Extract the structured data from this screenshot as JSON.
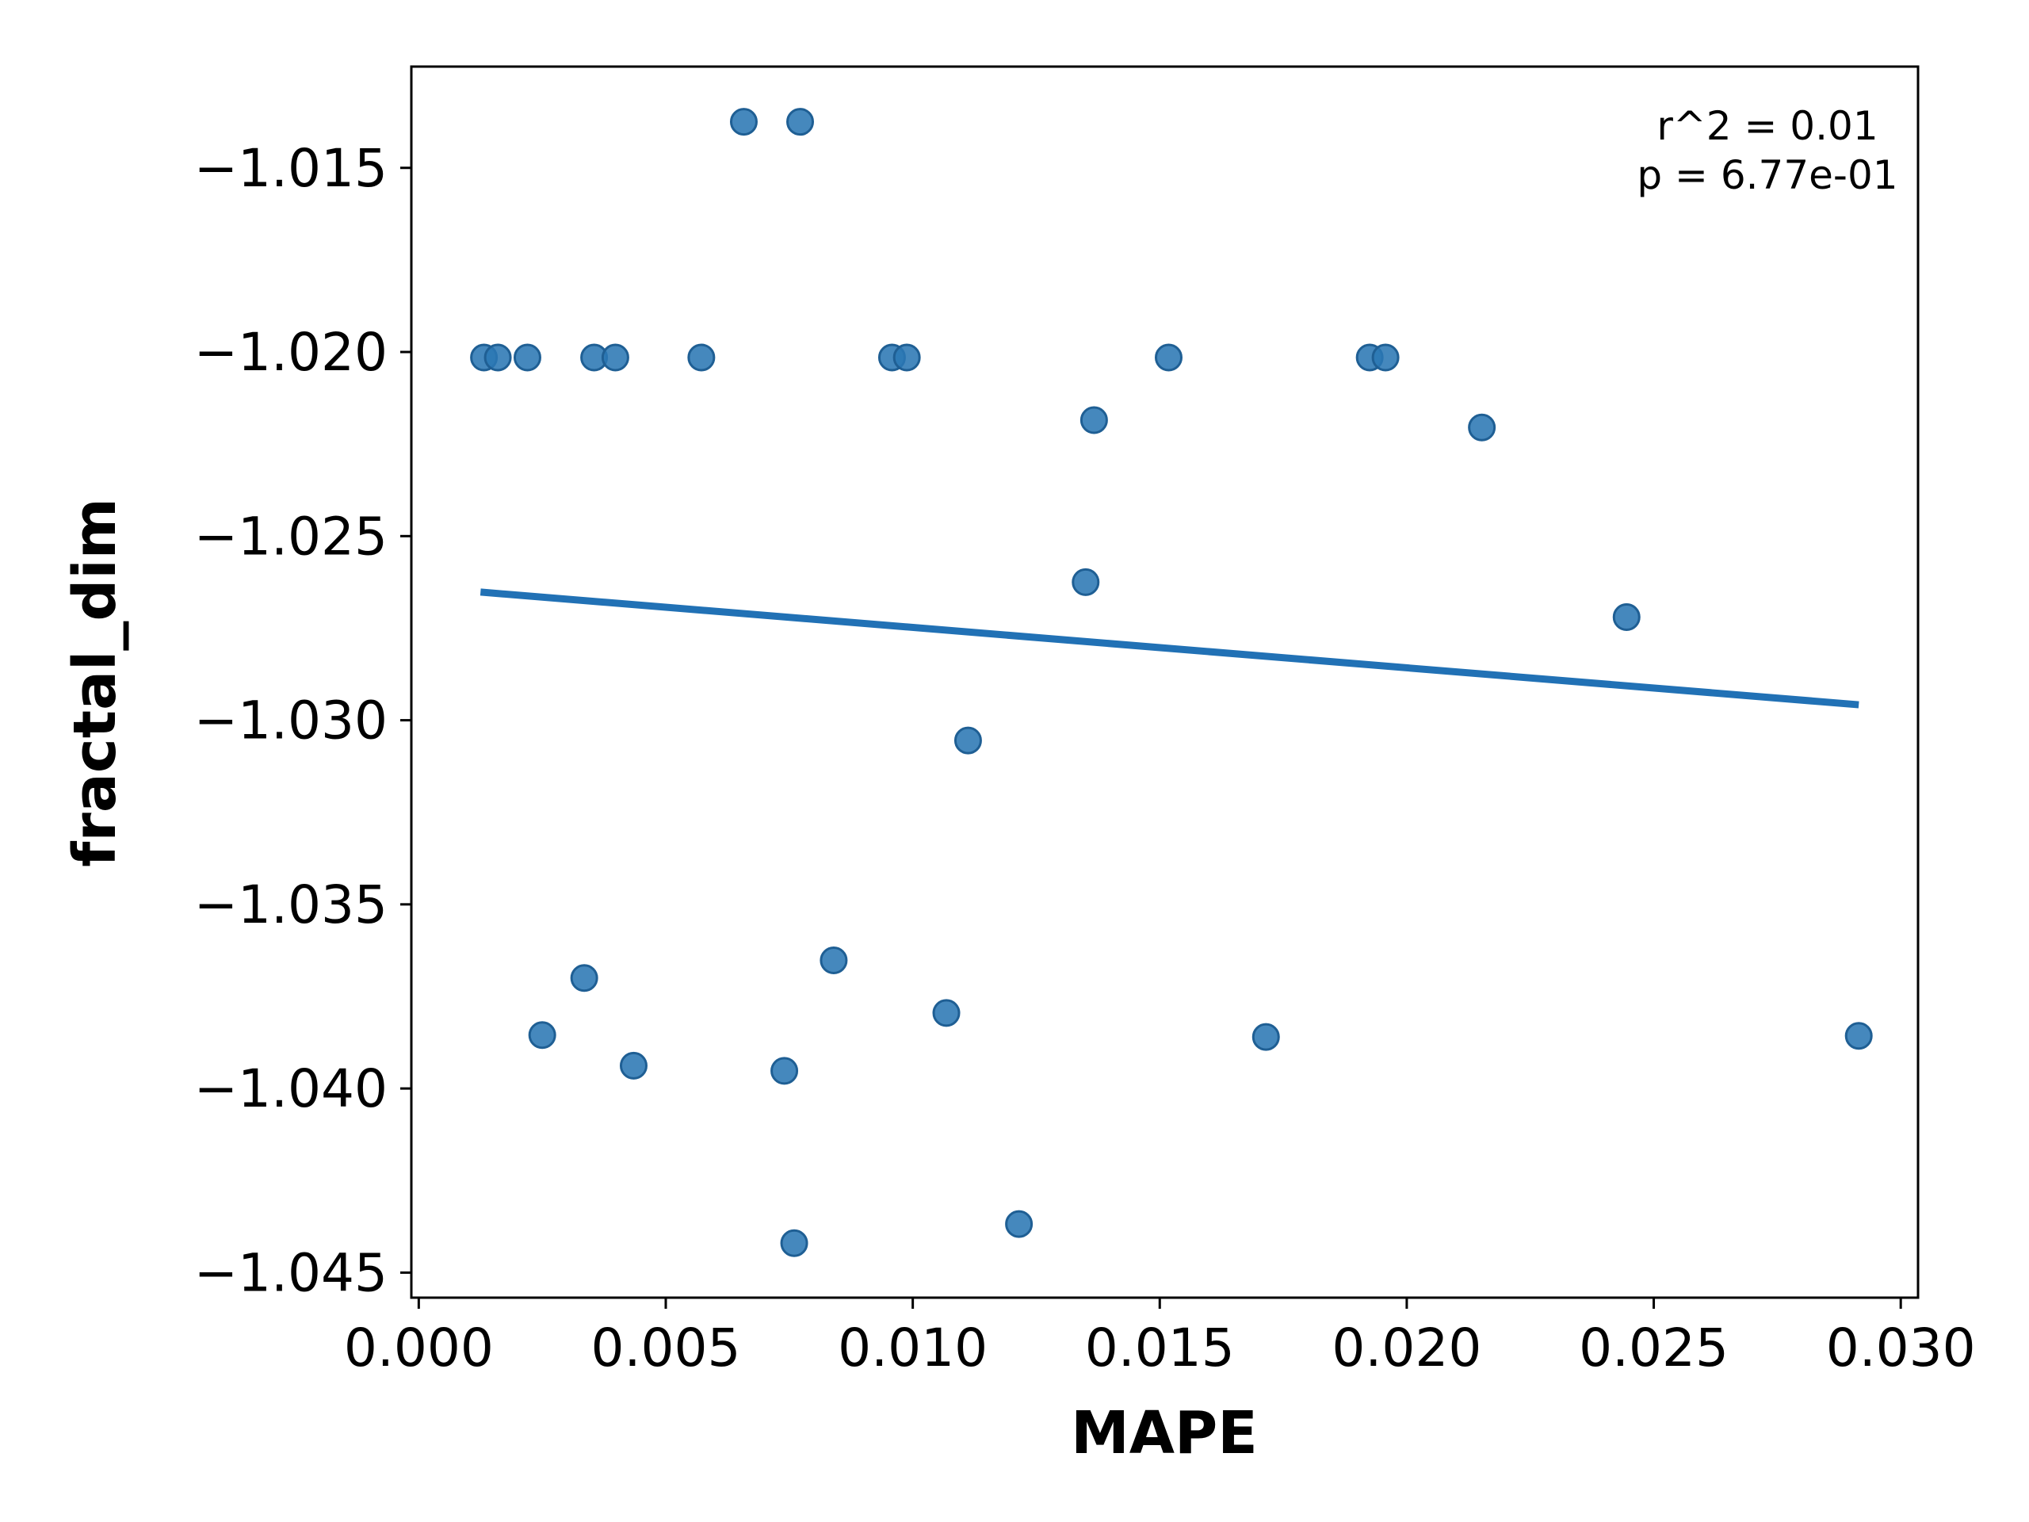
{
  "chart_data": {
    "type": "scatter",
    "xlabel": "MAPE",
    "ylabel": "fractal_dim",
    "xlim": [
      -0.00015,
      0.03035
    ],
    "ylim": [
      -1.04568,
      -1.01225
    ],
    "x_ticks": [
      0.0,
      0.005,
      0.01,
      0.015,
      0.02,
      0.025,
      0.03
    ],
    "x_tick_labels": [
      "0.000",
      "0.005",
      "0.010",
      "0.015",
      "0.020",
      "0.025",
      "0.030"
    ],
    "y_ticks": [
      -1.015,
      -1.02,
      -1.025,
      -1.03,
      -1.035,
      -1.04,
      -1.045
    ],
    "y_tick_labels": [
      "−1.015",
      "−1.020",
      "−1.025",
      "−1.030",
      "−1.035",
      "−1.040",
      "−1.045"
    ],
    "grid": false,
    "annotation": {
      "r2_text": "r^2 = 0.01",
      "p_text": "p = 6.77e-01"
    },
    "points": [
      {
        "x": 0.00132,
        "y": -1.02015
      },
      {
        "x": 0.0016,
        "y": -1.02015
      },
      {
        "x": 0.0022,
        "y": -1.02015
      },
      {
        "x": 0.0025,
        "y": -1.03855
      },
      {
        "x": 0.00335,
        "y": -1.037
      },
      {
        "x": 0.00355,
        "y": -1.02015
      },
      {
        "x": 0.00398,
        "y": -1.02015
      },
      {
        "x": 0.00435,
        "y": -1.03938
      },
      {
        "x": 0.00572,
        "y": -1.02015
      },
      {
        "x": 0.00658,
        "y": -1.01375
      },
      {
        "x": 0.0074,
        "y": -1.03952
      },
      {
        "x": 0.0076,
        "y": -1.0442
      },
      {
        "x": 0.00772,
        "y": -1.01375
      },
      {
        "x": 0.0084,
        "y": -1.03652
      },
      {
        "x": 0.00958,
        "y": -1.02015
      },
      {
        "x": 0.00988,
        "y": -1.02015
      },
      {
        "x": 0.01068,
        "y": -1.03795
      },
      {
        "x": 0.01112,
        "y": -1.03055
      },
      {
        "x": 0.01215,
        "y": -1.04368
      },
      {
        "x": 0.0135,
        "y": -1.02625
      },
      {
        "x": 0.01367,
        "y": -1.02185
      },
      {
        "x": 0.01518,
        "y": -1.02015
      },
      {
        "x": 0.01715,
        "y": -1.0386
      },
      {
        "x": 0.01925,
        "y": -1.02015
      },
      {
        "x": 0.01957,
        "y": -1.02015
      },
      {
        "x": 0.02152,
        "y": -1.02205
      },
      {
        "x": 0.02445,
        "y": -1.0272
      },
      {
        "x": 0.02915,
        "y": -1.03857
      }
    ],
    "fit_line": {
      "x": [
        0.00125,
        0.02915
      ],
      "y": [
        -1.02652,
        -1.02958
      ]
    },
    "colors": {
      "point": "#2b78b4",
      "point_edge": "#1f5f94",
      "line": "#2171b5"
    }
  }
}
